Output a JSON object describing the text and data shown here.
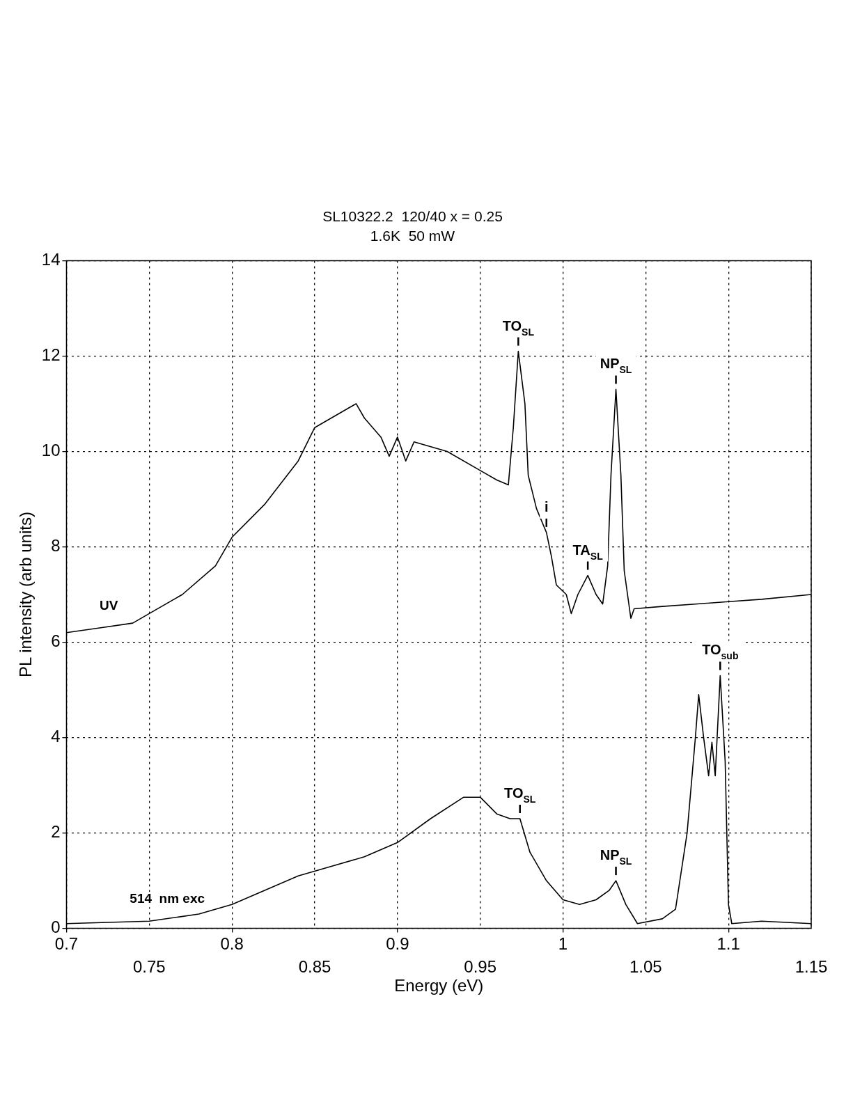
{
  "chart_data": {
    "type": "line",
    "title": "SL10322.2  120/40 x = 0.25",
    "subtitle": "1.6K  50 mW",
    "xlabel": "Energy (eV)",
    "ylabel": "PL intensity (arb units)",
    "xlim": [
      0.7,
      1.15
    ],
    "xticks": [
      0.7,
      0.8,
      0.9,
      1,
      1.1
    ],
    "x2lim": [
      0.7,
      1.15
    ],
    "x2ticks": [
      0.75,
      0.85,
      0.95,
      1.05,
      1.15
    ],
    "ylim": [
      0,
      14
    ],
    "yticks": [
      0,
      2,
      4,
      6,
      8,
      10,
      12,
      14
    ],
    "grid": true,
    "legend": false,
    "marker": "none",
    "line_style": "solid",
    "series": [
      {
        "name": "UV",
        "color": "#000000",
        "x": [
          0.7,
          0.72,
          0.74,
          0.75,
          0.77,
          0.79,
          0.8,
          0.82,
          0.84,
          0.85,
          0.86,
          0.87,
          0.875,
          0.88,
          0.89,
          0.895,
          0.9,
          0.905,
          0.91,
          0.93,
          0.95,
          0.96,
          0.967,
          0.97,
          0.973,
          0.977,
          0.979,
          0.984,
          0.99,
          0.993,
          0.996,
          1.002,
          1.005,
          1.009,
          1.015,
          1.02,
          1.024,
          1.027,
          1.029,
          1.032,
          1.035,
          1.037,
          1.041,
          1.043,
          1.06,
          1.08,
          1.1,
          1.12,
          1.15
        ],
        "values": [
          6.2,
          6.3,
          6.4,
          6.6,
          7.0,
          7.6,
          8.2,
          8.9,
          9.8,
          10.5,
          10.7,
          10.9,
          11.0,
          10.7,
          10.3,
          9.9,
          10.3,
          9.8,
          10.2,
          10.0,
          9.6,
          9.4,
          9.3,
          10.5,
          12.1,
          11.0,
          9.5,
          8.8,
          8.3,
          7.8,
          7.2,
          7.0,
          6.6,
          7.0,
          7.4,
          7.0,
          6.8,
          7.6,
          9.5,
          11.3,
          9.5,
          7.5,
          6.5,
          6.7,
          6.75,
          6.8,
          6.85,
          6.9,
          7.0
        ]
      },
      {
        "name": "514  nm exc",
        "color": "#000000",
        "x": [
          0.7,
          0.75,
          0.78,
          0.8,
          0.82,
          0.84,
          0.86,
          0.88,
          0.9,
          0.92,
          0.94,
          0.95,
          0.96,
          0.968,
          0.974,
          0.98,
          0.99,
          1.0,
          1.01,
          1.02,
          1.028,
          1.032,
          1.038,
          1.045,
          1.06,
          1.068,
          1.075,
          1.08,
          1.082,
          1.085,
          1.088,
          1.09,
          1.092,
          1.095,
          1.098,
          1.1,
          1.102,
          1.12,
          1.15
        ],
        "values": [
          0.1,
          0.15,
          0.3,
          0.5,
          0.8,
          1.1,
          1.3,
          1.5,
          1.8,
          2.3,
          2.75,
          2.75,
          2.4,
          2.3,
          2.3,
          1.6,
          1.0,
          0.6,
          0.5,
          0.6,
          0.8,
          1.0,
          0.5,
          0.1,
          0.2,
          0.4,
          2.0,
          4.0,
          4.9,
          4.0,
          3.2,
          3.9,
          3.2,
          5.3,
          3.5,
          0.5,
          0.1,
          0.15,
          0.1
        ]
      }
    ],
    "annotations": [
      {
        "text": "TO$_{SL}$",
        "x": 0.973,
        "y": 12.1
      },
      {
        "text": "i",
        "x": 0.99,
        "y": 8.3
      },
      {
        "text": "TA$_{SL}$",
        "x": 1.015,
        "y": 7.4
      },
      {
        "text": "NP$_{SL}$",
        "x": 1.032,
        "y": 11.3
      },
      {
        "text": "TO$_{SL}$",
        "x": 0.974,
        "y": 2.3
      },
      {
        "text": "NP$_{SL}$",
        "x": 1.032,
        "y": 1.0
      },
      {
        "text": "TO$_{sub}$",
        "x": 1.095,
        "y": 5.3
      }
    ]
  }
}
